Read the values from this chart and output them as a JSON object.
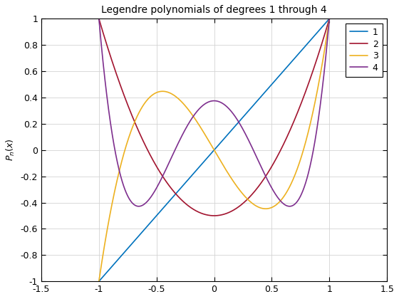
{
  "title": "Legendre polynomials of degrees 1 through 4",
  "ylabel": "$P_n(x)$",
  "xlabel": "",
  "xlim": [
    -1.5,
    1.5
  ],
  "ylim": [
    -1.0,
    1.0
  ],
  "xticks": [
    -1.5,
    -1.0,
    -0.5,
    0.0,
    0.5,
    1.0,
    1.5
  ],
  "yticks": [
    -1.0,
    -0.8,
    -0.6,
    -0.4,
    -0.2,
    0.0,
    0.2,
    0.4,
    0.6,
    0.8,
    1.0
  ],
  "degrees": [
    1,
    2,
    3,
    4
  ],
  "legend_labels": [
    "1",
    "2",
    "3",
    "4"
  ],
  "line_colors": [
    "#0072BD",
    "#A2142F",
    "#EDB120",
    "#7E2F8E"
  ],
  "line_width": 1.2,
  "background_color": "#FFFFFF",
  "grid_color": "#D3D3D3",
  "axes_bg_color": "#FFFFFF",
  "title_fontsize": 10,
  "label_fontsize": 9,
  "tick_fontsize": 9,
  "legend_fontsize": 9
}
